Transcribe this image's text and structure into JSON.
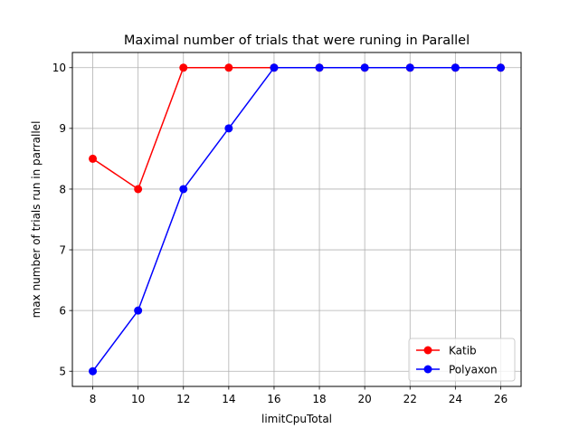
{
  "chart_data": {
    "type": "line",
    "title": "Maximal number of trials that were  runing in Parallel",
    "xlabel": "limitCpuTotal",
    "ylabel": "max number of trials run in parrallel",
    "x": [
      8,
      10,
      12,
      14,
      16,
      18,
      20,
      22,
      24,
      26
    ],
    "xticks": [
      8,
      10,
      12,
      14,
      16,
      18,
      20,
      22,
      24,
      26
    ],
    "yticks": [
      5,
      6,
      7,
      8,
      9,
      10
    ],
    "xlim": [
      7.1,
      26.9
    ],
    "ylim": [
      4.75,
      10.25
    ],
    "grid": true,
    "legend_position": "lower-right",
    "series": [
      {
        "name": "Katib",
        "color": "#ff0000",
        "values": [
          8.5,
          8,
          10,
          10,
          10,
          10,
          10,
          10,
          10,
          10
        ]
      },
      {
        "name": "Polyaxon",
        "color": "#0000ff",
        "values": [
          5,
          6,
          8,
          9,
          10,
          10,
          10,
          10,
          10,
          10
        ]
      }
    ]
  }
}
